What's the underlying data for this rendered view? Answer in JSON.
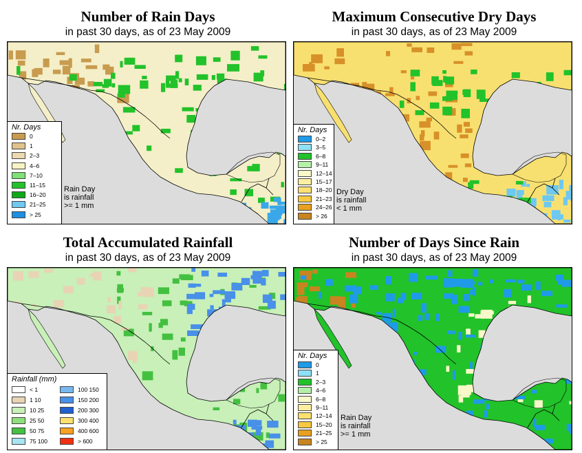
{
  "panels": [
    {
      "title": "Number of Rain Days",
      "subtitle": "in past 30 days, as of  23 May 2009",
      "legend_title": "Nr. Days",
      "legend": [
        {
          "label": "0",
          "color": "#c89b4f"
        },
        {
          "label": "1",
          "color": "#e0c28c"
        },
        {
          "label": "2–3",
          "color": "#ecd9b0"
        },
        {
          "label": "4–6",
          "color": "#f7f3c4"
        },
        {
          "label": "7–10",
          "color": "#7fe07a"
        },
        {
          "label": "11–15",
          "color": "#22c22a"
        },
        {
          "label": "16–20",
          "color": "#10a818"
        },
        {
          "label": "21–25",
          "color": "#6ec8f0"
        },
        {
          "label": "> 25",
          "color": "#1e8ee0"
        }
      ],
      "note": [
        "Rain Day",
        "is rainfall",
        ">= 1 mm"
      ]
    },
    {
      "title": "Maximum Consecutive Dry Days",
      "subtitle": "in past 30 days, as of  23 May 2009",
      "legend_title": "Nr. Days",
      "legend": [
        {
          "label": "0–2",
          "color": "#1e9ae8"
        },
        {
          "label": "3–5",
          "color": "#8ee0f4"
        },
        {
          "label": "6–8",
          "color": "#22c22a"
        },
        {
          "label": "9–11",
          "color": "#b4f0a8"
        },
        {
          "label": "12–14",
          "color": "#f8f8c8"
        },
        {
          "label": "15–17",
          "color": "#fcf0a0"
        },
        {
          "label": "18–20",
          "color": "#fce070"
        },
        {
          "label": "21–23",
          "color": "#f8c840"
        },
        {
          "label": "24–26",
          "color": "#e8a020"
        },
        {
          "label": "> 26",
          "color": "#c88420"
        }
      ],
      "note": [
        "Dry Day",
        "is rainfall",
        "< 1 mm"
      ]
    },
    {
      "title": "Total Accumulated Rainfall",
      "subtitle": "in past 30 days, as of  23 May 2009",
      "legend_title": "Rainfall (mm)",
      "legend_left": [
        {
          "label": "< 1",
          "color": "#ffffff"
        },
        {
          "label": "1     10",
          "color": "#e8d4b4"
        },
        {
          "label": "10    25",
          "color": "#c8f0b8"
        },
        {
          "label": "25    50",
          "color": "#8ee07c"
        },
        {
          "label": "50    75",
          "color": "#44c040"
        },
        {
          "label": "75   100",
          "color": "#a8e4f4"
        }
      ],
      "legend_right": [
        {
          "label": "100  150",
          "color": "#78b8f0"
        },
        {
          "label": "150  200",
          "color": "#4890e8"
        },
        {
          "label": "200  300",
          "color": "#2060d0"
        },
        {
          "label": "300  400",
          "color": "#fce070"
        },
        {
          "label": "400  600",
          "color": "#f8a020"
        },
        {
          "label": "> 600",
          "color": "#f03010"
        }
      ]
    },
    {
      "title": "Number of Days Since Rain",
      "subtitle": "in past 30 days, as of  23 May 2009",
      "legend_title": "Nr. Days",
      "legend": [
        {
          "label": "0",
          "color": "#1e9ae8"
        },
        {
          "label": "1",
          "color": "#8ee0f4"
        },
        {
          "label": "2–3",
          "color": "#22c22a"
        },
        {
          "label": "4–6",
          "color": "#b4f0a8"
        },
        {
          "label": "6–8",
          "color": "#f8f8c8"
        },
        {
          "label": "9–11",
          "color": "#fcf0a0"
        },
        {
          "label": "12–14",
          "color": "#fce070"
        },
        {
          "label": "15–20",
          "color": "#f8c840"
        },
        {
          "label": "21–25",
          "color": "#e8a020"
        },
        {
          "label": "> 25",
          "color": "#c88420"
        }
      ],
      "note": [
        "Rain Day",
        "is rainfall",
        ">= 1 mm"
      ]
    }
  ],
  "colors": {
    "ocean": "#dcdcdc",
    "panel1_land": "#f4efc8",
    "panel1_wet": "#22c22a",
    "panel1_dry": "#c89b4f",
    "panel1_blue": "#3aa8e8",
    "panel2_land": "#f8e070",
    "panel2_dry": "#d89028",
    "panel2_wet": "#22c22a",
    "panel2_blue": "#6ec8f0",
    "panel3_land": "#c8f0b8",
    "panel3_wet": "#44c040",
    "panel3_dry": "#e8d4b4",
    "panel3_blue": "#4890e8",
    "panel4_land": "#22c22a",
    "panel4_blue": "#1e9ae8",
    "panel4_dry": "#c88420",
    "panel4_pale": "#f8f8c8"
  }
}
